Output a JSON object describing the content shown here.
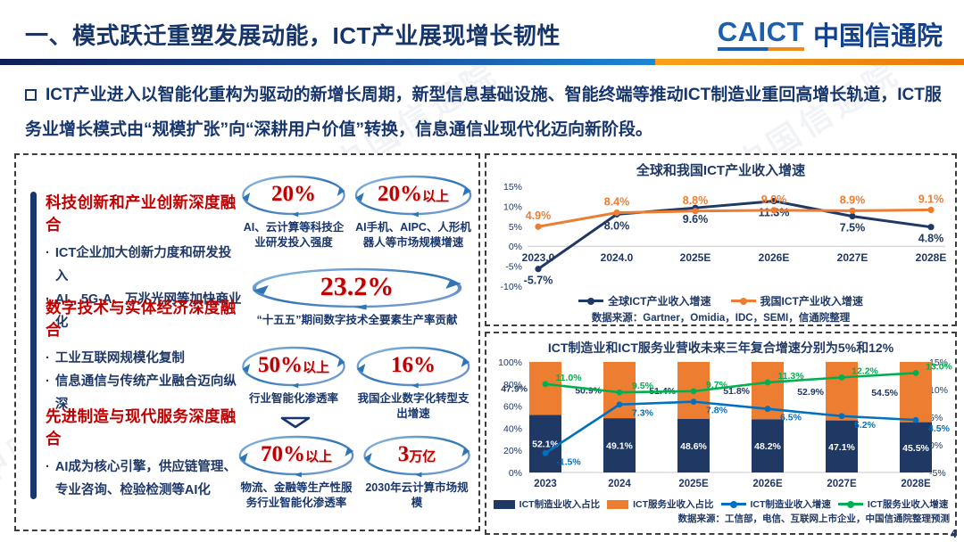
{
  "watermark": {
    "text": "中国信通院"
  },
  "header": {
    "title": "一、模式跃迁重塑发展动能，ICT产业展现增长韧性",
    "logo": {
      "latin": "CAICT",
      "cn": "中国信通院"
    }
  },
  "intro": {
    "text": "ICT产业进入以智能化重构为驱动的新增长周期，新型信息基础设施、智能终端等推动ICT制造业重回高增长轨道，ICT服务业增长模式由“规模扩张”向“深耕用户价值”转换，信息通信业现代化迈向新阶段。"
  },
  "left_panel": {
    "sections": [
      {
        "title": "科技创新和产业创新深度融合",
        "bullets": [
          "ICT企业加大创新力度和研发投入",
          "AI、5G-A、万兆光网等加快商业化"
        ]
      },
      {
        "title": "数字技术与实体经济深度融合",
        "bullets": [
          "工业互联网规模化复制",
          "信息通信与传统产业融合迈向纵深"
        ]
      },
      {
        "title": "先进制造与现代服务深度融合",
        "bullets": [
          "AI成为核心引擎，供应链管理、专业咨询、检验检测等AI化"
        ]
      }
    ],
    "stats": [
      {
        "big": "20%",
        "suffix": "",
        "label": "AI、云计算等科技企业研发投入强度"
      },
      {
        "big": "20%",
        "suffix": "以上",
        "label": "AI手机、AIPC、人形机器人等市场规模增速"
      },
      {
        "big": "23.2%",
        "suffix": "",
        "label": "“十五五”期间数字技术全要素生产率贡献"
      },
      {
        "big": "50%",
        "suffix": "以上",
        "label": "行业智能化渗透率"
      },
      {
        "big": "16%",
        "suffix": "",
        "label": "我国企业数字化转型支出增速"
      },
      {
        "big": "70%",
        "suffix": "以上",
        "label": "物流、金融等生产性服务行业智能化渗透率"
      },
      {
        "big": "3",
        "suffix": "万亿",
        "label": "2030年云计算市场规模"
      }
    ]
  },
  "chart_data": [
    {
      "type": "line",
      "title": "全球和我国ICT产业收入增速",
      "categories": [
        "2023.0",
        "2024.0",
        "2025E",
        "2026E",
        "2027E",
        "2028E"
      ],
      "series": [
        {
          "name": "全球ICT产业收入增速",
          "color": "#1F3864",
          "values": [
            -5.7,
            8.0,
            9.6,
            11.3,
            7.5,
            4.8
          ],
          "labels": [
            "-5.7%",
            "8.0%",
            "9.6%",
            "11.3%",
            "7.5%",
            "4.8%"
          ],
          "label_position": "below"
        },
        {
          "name": "我国ICT产业收入增速",
          "color": "#ED7D31",
          "values": [
            4.9,
            8.4,
            8.8,
            9.0,
            8.9,
            9.1
          ],
          "labels": [
            "4.9%",
            "8.4%",
            "8.8%",
            "9.0%",
            "8.9%",
            "9.1%"
          ],
          "label_position": "above"
        }
      ],
      "ylim": [
        -10,
        15
      ],
      "yticks": [
        15,
        10,
        5,
        0,
        -5,
        -10
      ],
      "ytick_suffix": "%",
      "grid": "zero-line-only",
      "legend_position": "bottom",
      "source": "数据来源：Gartner，Omidia，IDC，SEMI，信通院整理"
    },
    {
      "type": "bar",
      "subtype": "stacked-bar-with-lines",
      "title": "ICT制造业和ICT服务业营收未来三年复合增速分别为5%和12%",
      "categories": [
        "2023",
        "2024",
        "2025E",
        "2026E",
        "2027E",
        "2028E"
      ],
      "bar_series": [
        {
          "name": "ICT制造业收入占比",
          "color": "#1F3864",
          "values": [
            52.1,
            49.1,
            48.6,
            48.2,
            47.1,
            45.5
          ],
          "labels": [
            "52.1%",
            "49.1%",
            "48.6%",
            "48.2%",
            "47.1%",
            "45.5%"
          ]
        },
        {
          "name": "ICT服务业收入占比",
          "color": "#ED7D31",
          "values": [
            47.9,
            50.9,
            51.4,
            51.8,
            52.9,
            54.5
          ],
          "labels": [
            "47.9%",
            "50.9%",
            "51.4%",
            "51.8%",
            "52.9%",
            "54.5%"
          ]
        }
      ],
      "line_series": [
        {
          "name": "ICT制造业收入增速",
          "color": "#0070C0",
          "axis": "right",
          "values": [
            -1.5,
            7.3,
            7.8,
            6.5,
            5.2,
            4.5
          ],
          "labels": [
            "-1.5%",
            "7.3%",
            "7.8%",
            "6.5%",
            "5.2%",
            "4.5%"
          ],
          "label_position": "below"
        },
        {
          "name": "ICT服务业收入增速",
          "color": "#00B050",
          "axis": "right",
          "values": [
            11.0,
            9.5,
            9.7,
            11.3,
            12.2,
            13.0
          ],
          "labels": [
            "11.0%",
            "9.5%",
            "9.7%",
            "11.3%",
            "12.2%",
            "13.0%"
          ],
          "label_position": "above"
        }
      ],
      "left_axis": {
        "ticks": [
          100,
          80,
          60,
          40,
          20,
          0
        ],
        "suffix": "%",
        "min": 0,
        "max": 100
      },
      "right_axis": {
        "ticks": [
          15,
          10,
          5,
          0,
          -5
        ],
        "suffix": "%",
        "min": -5,
        "max": 15
      },
      "grid": "zero-line-only",
      "legend_position": "bottom",
      "source": "数据来源：工信部，电信、互联网上市企业，中国信通院整理预测"
    }
  ],
  "page_number": "4"
}
